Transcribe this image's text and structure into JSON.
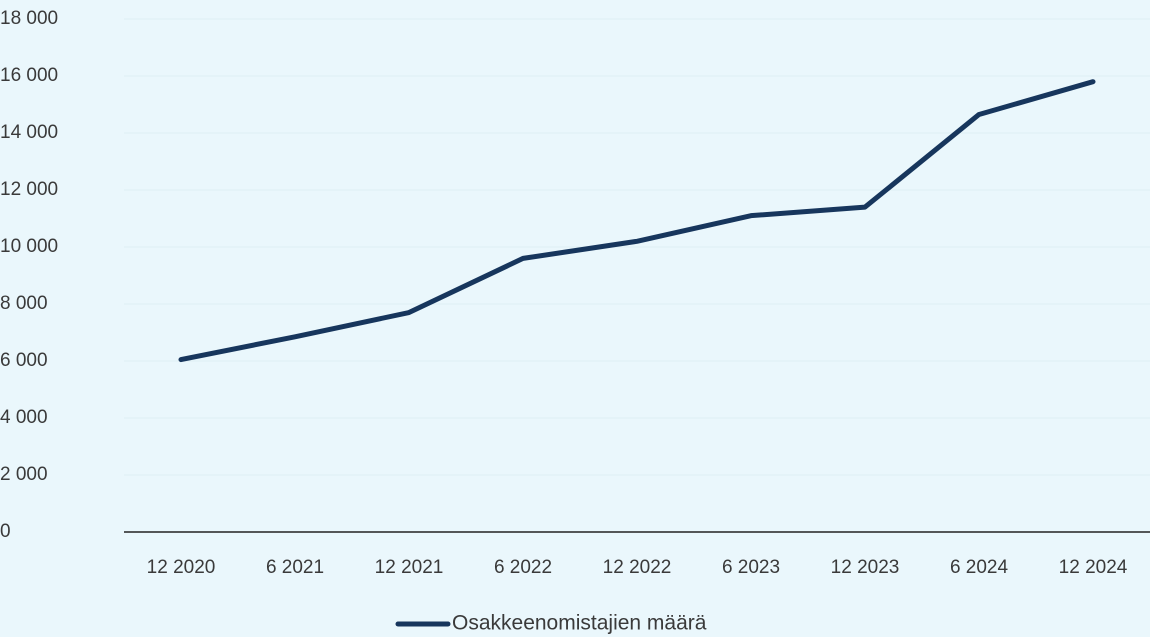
{
  "chart_data": {
    "type": "line",
    "categories": [
      "12 2020",
      "6 2021",
      "12 2021",
      "6 2022",
      "12 2022",
      "6 2023",
      "12 2023",
      "6 2024",
      "12 2024"
    ],
    "series": [
      {
        "name": "Osakkeenomistajien määrä",
        "color": "#17365d",
        "values": [
          6050,
          6850,
          7700,
          9600,
          10200,
          11100,
          11400,
          14650,
          15800
        ]
      }
    ],
    "ylim": [
      0,
      18000
    ],
    "yticks": [
      {
        "value": 0,
        "label": "0"
      },
      {
        "value": 2000,
        "label": "2 000"
      },
      {
        "value": 4000,
        "label": "4 000"
      },
      {
        "value": 6000,
        "label": "6 000"
      },
      {
        "value": 8000,
        "label": "8 000"
      },
      {
        "value": 10000,
        "label": "10 000"
      },
      {
        "value": 12000,
        "label": "12 000"
      },
      {
        "value": 14000,
        "label": "14 000"
      },
      {
        "value": 16000,
        "label": "16 000"
      },
      {
        "value": 18000,
        "label": "18 000"
      }
    ],
    "grid": true,
    "legend": "bottom"
  }
}
